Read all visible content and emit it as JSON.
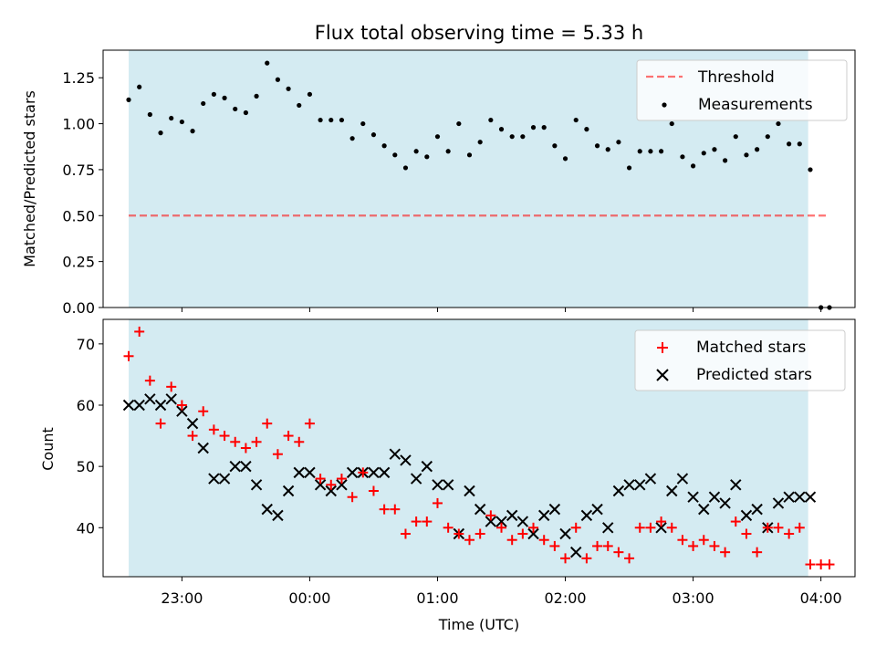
{
  "title": "Flux total observing time = 5.33 h",
  "colors": {
    "shade": "#add8e6",
    "threshold": "#ff0000",
    "matched": "#ff0000",
    "predicted": "#000000",
    "measurement": "#000000"
  },
  "chart_data": [
    {
      "type": "scatter",
      "ylabel": "Matched/Predicted stars",
      "ylim": [
        0,
        1.4
      ],
      "yticks": [
        "0.00",
        "0.25",
        "0.50",
        "0.75",
        "1.00",
        "1.25"
      ],
      "xlim": [
        "22:23",
        "04:16"
      ],
      "shaded_span": [
        "22:35",
        "03:54"
      ],
      "legend_position": "top-right",
      "threshold": {
        "name": "Threshold",
        "y": 0.5,
        "x": [
          "22:35",
          "04:04"
        ]
      },
      "series": [
        {
          "name": "Measurements",
          "marker": "dot",
          "x": [
            "22:35",
            "22:40",
            "22:45",
            "22:50",
            "22:55",
            "23:00",
            "23:05",
            "23:10",
            "23:15",
            "23:20",
            "23:25",
            "23:30",
            "23:35",
            "23:40",
            "23:45",
            "23:50",
            "23:55",
            "00:00",
            "00:05",
            "00:10",
            "00:15",
            "00:20",
            "00:25",
            "00:30",
            "00:35",
            "00:40",
            "00:45",
            "00:50",
            "00:55",
            "01:00",
            "01:05",
            "01:10",
            "01:15",
            "01:20",
            "01:25",
            "01:30",
            "01:35",
            "01:40",
            "01:45",
            "01:50",
            "01:55",
            "02:00",
            "02:05",
            "02:10",
            "02:15",
            "02:20",
            "02:25",
            "02:30",
            "02:35",
            "02:40",
            "02:45",
            "02:50",
            "02:55",
            "03:00",
            "03:05",
            "03:10",
            "03:15",
            "03:20",
            "03:25",
            "03:30",
            "03:35",
            "03:40",
            "03:45",
            "03:50",
            "03:55",
            "04:00",
            "04:04"
          ],
          "y": [
            1.13,
            1.2,
            1.05,
            0.95,
            1.03,
            1.01,
            0.96,
            1.11,
            1.16,
            1.14,
            1.08,
            1.06,
            1.15,
            1.33,
            1.24,
            1.19,
            1.1,
            1.16,
            1.02,
            1.02,
            1.02,
            0.92,
            1.0,
            0.94,
            0.88,
            0.83,
            0.76,
            0.85,
            0.82,
            0.93,
            0.85,
            1.0,
            0.83,
            0.9,
            1.02,
            0.97,
            0.93,
            0.93,
            0.98,
            0.98,
            0.88,
            0.81,
            1.02,
            0.97,
            0.88,
            0.86,
            0.9,
            0.76,
            0.85,
            0.85,
            0.85,
            1.0,
            0.82,
            0.77,
            0.84,
            0.86,
            0.8,
            0.93,
            0.83,
            0.86,
            0.93,
            1.0,
            0.89,
            0.89,
            0.75,
            0.0,
            0.0
          ]
        }
      ]
    },
    {
      "type": "scatter",
      "xlabel": "Time (UTC)",
      "ylabel": "Count",
      "ylim": [
        32,
        74
      ],
      "yticks": [
        "40",
        "50",
        "60",
        "70"
      ],
      "xlim": [
        "22:23",
        "04:16"
      ],
      "xticks": [
        "23:00",
        "00:00",
        "01:00",
        "02:00",
        "03:00",
        "04:00"
      ],
      "shaded_span": [
        "22:35",
        "03:54"
      ],
      "legend_position": "top-right",
      "series": [
        {
          "name": "Matched stars",
          "marker": "+",
          "x": [
            "22:35",
            "22:40",
            "22:45",
            "22:50",
            "22:55",
            "23:00",
            "23:05",
            "23:10",
            "23:15",
            "23:20",
            "23:25",
            "23:30",
            "23:35",
            "23:40",
            "23:45",
            "23:50",
            "23:55",
            "00:00",
            "00:05",
            "00:10",
            "00:15",
            "00:20",
            "00:25",
            "00:30",
            "00:35",
            "00:40",
            "00:45",
            "00:50",
            "00:55",
            "01:00",
            "01:05",
            "01:10",
            "01:15",
            "01:20",
            "01:25",
            "01:30",
            "01:35",
            "01:40",
            "01:45",
            "01:50",
            "01:55",
            "02:00",
            "02:05",
            "02:10",
            "02:15",
            "02:20",
            "02:25",
            "02:30",
            "02:35",
            "02:40",
            "02:45",
            "02:50",
            "02:55",
            "03:00",
            "03:05",
            "03:10",
            "03:15",
            "03:20",
            "03:25",
            "03:30",
            "03:35",
            "03:40",
            "03:45",
            "03:50",
            "03:55",
            "04:00",
            "04:04"
          ],
          "y": [
            68,
            72,
            64,
            57,
            63,
            60,
            55,
            59,
            56,
            55,
            54,
            53,
            54,
            57,
            52,
            55,
            54,
            57,
            48,
            47,
            48,
            45,
            49,
            46,
            43,
            43,
            39,
            41,
            41,
            44,
            40,
            39,
            38,
            39,
            42,
            40,
            38,
            39,
            40,
            38,
            37,
            35,
            40,
            35,
            37,
            37,
            36,
            35,
            40,
            40,
            41,
            40,
            38,
            37,
            38,
            37,
            36,
            41,
            39,
            36,
            40,
            40,
            39,
            40,
            34,
            34,
            34
          ]
        },
        {
          "name": "Predicted stars",
          "marker": "x",
          "x": [
            "22:35",
            "22:40",
            "22:45",
            "22:50",
            "22:55",
            "23:00",
            "23:05",
            "23:10",
            "23:15",
            "23:20",
            "23:25",
            "23:30",
            "23:35",
            "23:40",
            "23:45",
            "23:50",
            "23:55",
            "00:00",
            "00:05",
            "00:10",
            "00:15",
            "00:20",
            "00:25",
            "00:30",
            "00:35",
            "00:40",
            "00:45",
            "00:50",
            "00:55",
            "01:00",
            "01:05",
            "01:10",
            "01:15",
            "01:20",
            "01:25",
            "01:30",
            "01:35",
            "01:40",
            "01:45",
            "01:50",
            "01:55",
            "02:00",
            "02:05",
            "02:10",
            "02:15",
            "02:20",
            "02:25",
            "02:30",
            "02:35",
            "02:40",
            "02:45",
            "02:50",
            "02:55",
            "03:00",
            "03:05",
            "03:10",
            "03:15",
            "03:20",
            "03:25",
            "03:30",
            "03:35",
            "03:40",
            "03:45",
            "03:50",
            "03:55"
          ],
          "y": [
            60,
            60,
            61,
            60,
            61,
            59,
            57,
            53,
            48,
            48,
            50,
            50,
            47,
            43,
            42,
            46,
            49,
            49,
            47,
            46,
            47,
            49,
            49,
            49,
            49,
            52,
            51,
            48,
            50,
            47,
            47,
            39,
            46,
            43,
            41,
            41,
            42,
            41,
            39,
            42,
            43,
            39,
            36,
            42,
            43,
            40,
            46,
            47,
            47,
            48,
            40,
            46,
            48,
            45,
            43,
            45,
            44,
            47,
            42,
            43,
            40,
            44,
            45,
            45,
            45
          ]
        }
      ]
    }
  ]
}
